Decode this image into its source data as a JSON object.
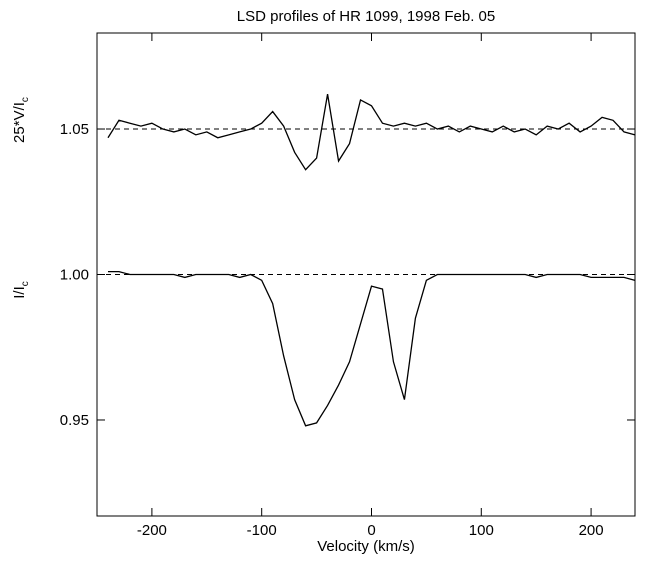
{
  "chart_data": {
    "type": "line",
    "title": "LSD profiles of HR 1099, 1998 Feb. 05",
    "x_label": "Velocity (km/s)",
    "y_labels": [
      {
        "text": "25*V/I",
        "sub": "c"
      },
      {
        "text": "I/I",
        "sub": "c"
      }
    ],
    "xlim": [
      -250,
      240
    ],
    "ylim": [
      0.917,
      1.083
    ],
    "xticks": [
      -200,
      -100,
      0,
      100,
      200
    ],
    "yticks": [
      {
        "value": 0.95,
        "label": "0.95"
      },
      {
        "value": 1.0,
        "label": "1.00"
      },
      {
        "value": 1.05,
        "label": "1.05"
      }
    ],
    "reference_lines": [
      1.05,
      1.0
    ],
    "x": [
      -240,
      -230,
      -220,
      -210,
      -200,
      -190,
      -180,
      -170,
      -160,
      -150,
      -140,
      -130,
      -120,
      -110,
      -100,
      -90,
      -80,
      -70,
      -60,
      -50,
      -40,
      -30,
      -20,
      -10,
      0,
      10,
      20,
      30,
      40,
      50,
      60,
      70,
      80,
      90,
      100,
      110,
      120,
      130,
      140,
      150,
      160,
      170,
      180,
      190,
      200,
      210,
      220,
      230,
      240
    ],
    "series": [
      {
        "color": "#000000",
        "values": [
          1.047,
          1.053,
          1.052,
          1.051,
          1.052,
          1.05,
          1.049,
          1.05,
          1.048,
          1.049,
          1.047,
          1.048,
          1.049,
          1.05,
          1.052,
          1.056,
          1.051,
          1.042,
          1.036,
          1.04,
          1.062,
          1.039,
          1.045,
          1.06,
          1.058,
          1.052,
          1.051,
          1.052,
          1.051,
          1.052,
          1.05,
          1.051,
          1.049,
          1.051,
          1.05,
          1.049,
          1.051,
          1.049,
          1.05,
          1.048,
          1.051,
          1.05,
          1.052,
          1.049,
          1.051,
          1.054,
          1.053,
          1.049,
          1.048
        ]
      },
      {
        "color": "#000000",
        "values": [
          1.001,
          1.001,
          1.0,
          1.0,
          1.0,
          1.0,
          1.0,
          0.999,
          1.0,
          1.0,
          1.0,
          1.0,
          0.999,
          1.0,
          0.998,
          0.99,
          0.972,
          0.957,
          0.948,
          0.949,
          0.955,
          0.962,
          0.97,
          0.983,
          0.996,
          0.995,
          0.97,
          0.957,
          0.985,
          0.998,
          1.0,
          1.0,
          1.0,
          1.0,
          1.0,
          1.0,
          1.0,
          1.0,
          1.0,
          0.999,
          1.0,
          1.0,
          1.0,
          1.0,
          0.999,
          0.999,
          0.999,
          0.999,
          0.998
        ]
      }
    ]
  }
}
